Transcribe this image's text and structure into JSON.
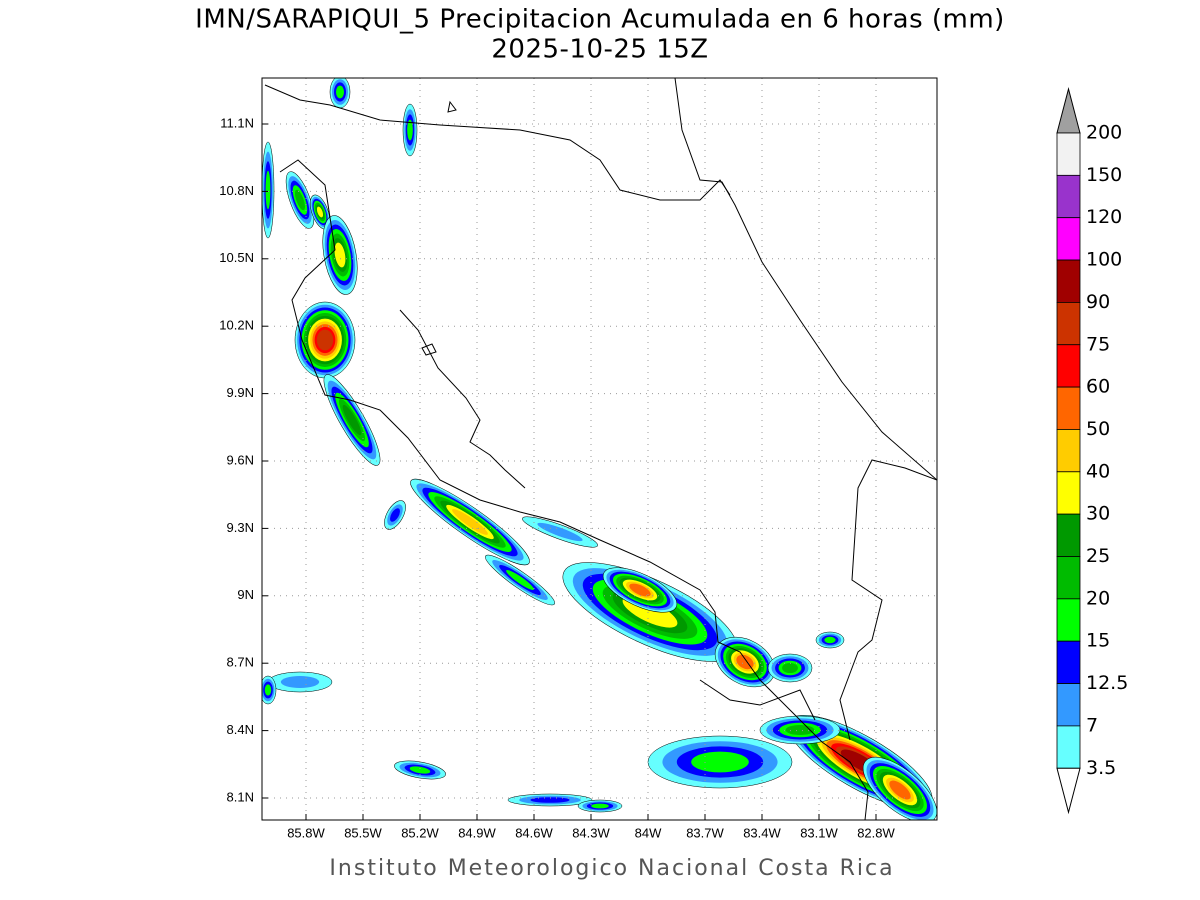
{
  "header": {
    "title": "IMN/SARAPIQUI_5 Precipitacion Acumulada en 6 horas (mm)",
    "subtitle": "2025-10-25 15Z"
  },
  "map": {
    "lon_ticks": [
      "85.8W",
      "85.5W",
      "85.2W",
      "84.9W",
      "84.6W",
      "84.3W",
      "84W",
      "83.7W",
      "83.4W",
      "83.1W",
      "82.8W"
    ],
    "lat_ticks": [
      "11.1N",
      "10.8N",
      "10.5N",
      "10.2N",
      "9.9N",
      "9.6N",
      "9.3N",
      "9N",
      "8.7N",
      "8.4N",
      "8.1N"
    ]
  },
  "colorbar": {
    "levels": [
      200,
      150,
      120,
      100,
      90,
      75,
      60,
      50,
      40,
      30,
      25,
      20,
      15,
      12.5,
      7,
      3.5
    ],
    "bin_colors": [
      "#f2f2f2",
      "#9933cc",
      "#ff00ff",
      "#a00000",
      "#cc3300",
      "#ff0000",
      "#ff6600",
      "#ffcc00",
      "#ffff00",
      "#009900",
      "#00bb00",
      "#00ff00",
      "#0000ff",
      "#3399ff",
      "#66ffff"
    ],
    "over_color": "#a0a0a0",
    "under_color": "#ffffff"
  },
  "footer": "Instituto Meteorologico Nacional Costa Rica"
}
